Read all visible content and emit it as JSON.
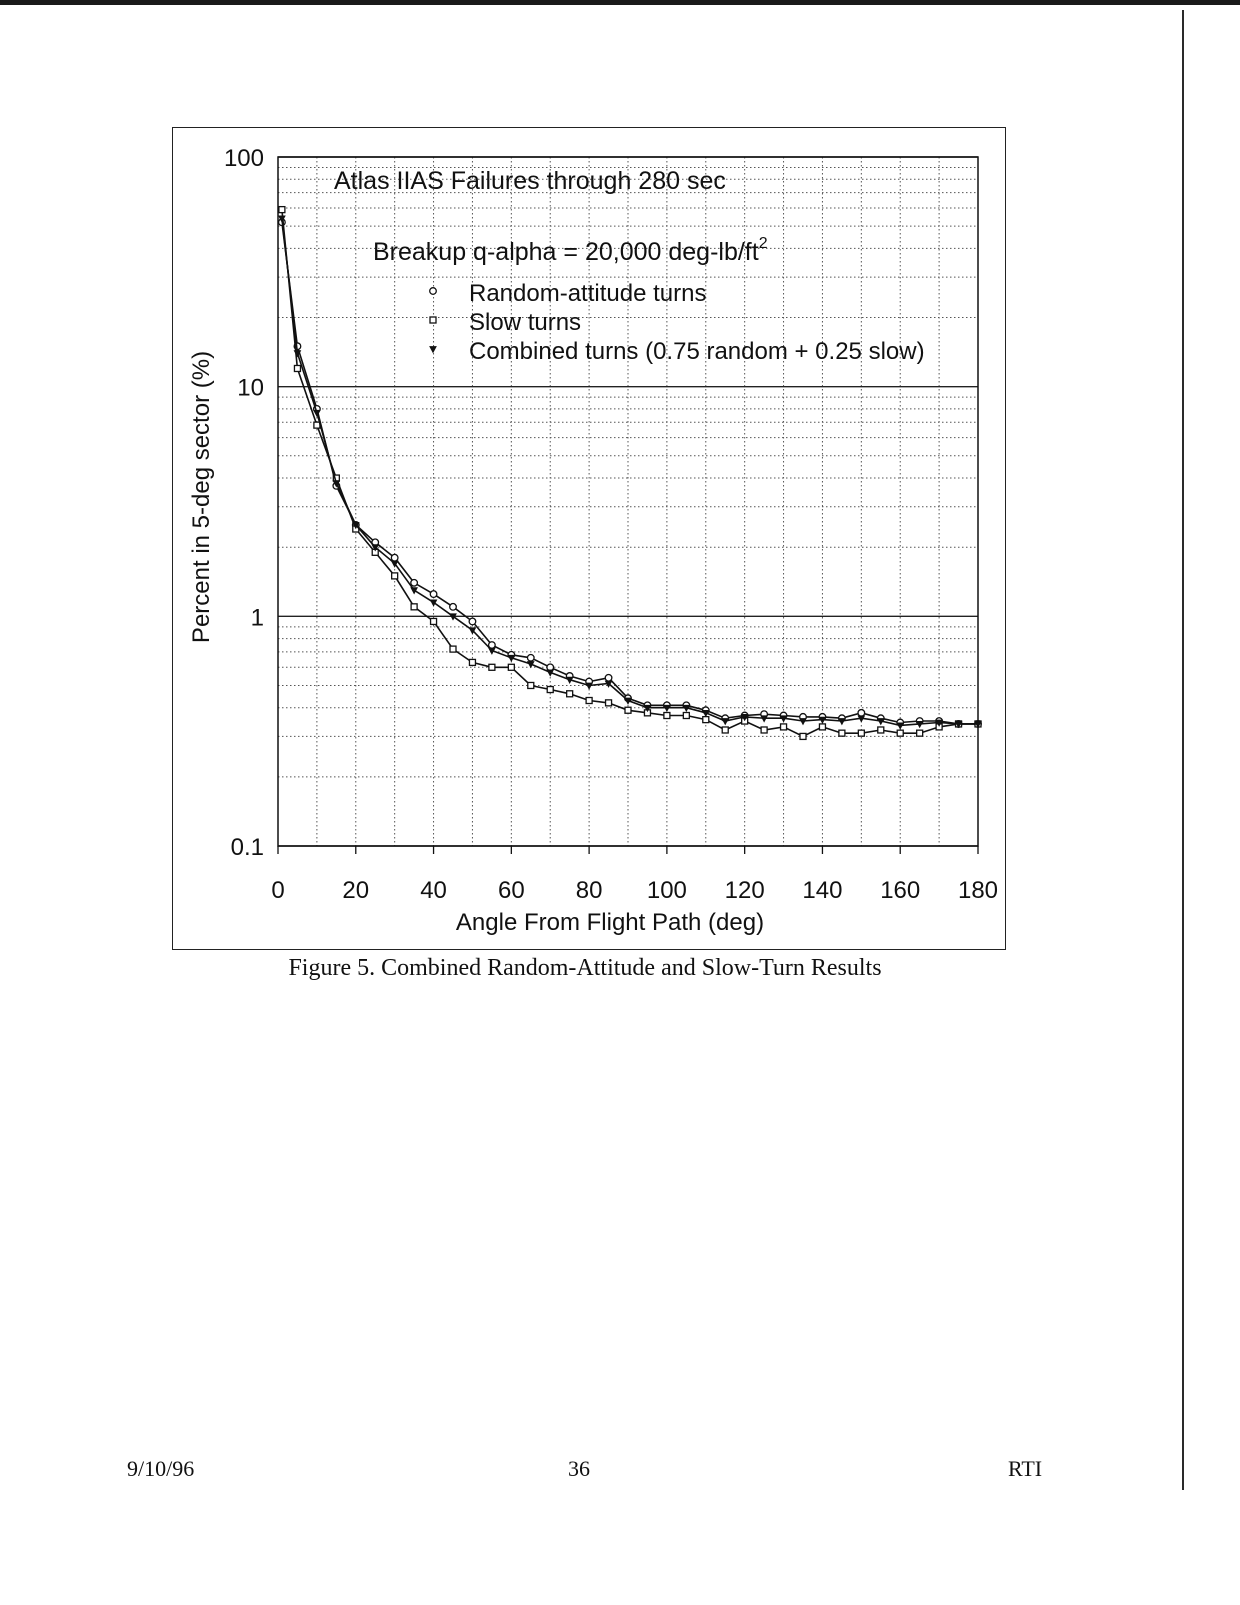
{
  "chart_data": {
    "type": "line",
    "title": "Atlas IIAS Failures through 280 sec",
    "subtitle": "Breakup q-alpha = 20,000 deg-lb/ft",
    "subtitle_superscript": "2",
    "xlabel": "Angle From Flight Path (deg)",
    "ylabel": "Percent in 5-deg sector (%)",
    "xlim": [
      0,
      180
    ],
    "ylim": [
      0.1,
      100
    ],
    "y_scale": "log",
    "x_ticks": [
      "0",
      "20",
      "40",
      "60",
      "80",
      "100",
      "120",
      "140",
      "160",
      "180"
    ],
    "y_ticks": [
      {
        "label": "0.1",
        "value": 0.1
      },
      {
        "label": "1",
        "value": 1
      },
      {
        "label": "10",
        "value": 10
      },
      {
        "label": "100",
        "value": 100
      }
    ],
    "grid": true,
    "legend_position": "top-center",
    "x": [
      1,
      5,
      10,
      15,
      20,
      25,
      30,
      35,
      40,
      45,
      50,
      55,
      60,
      65,
      70,
      75,
      80,
      85,
      90,
      95,
      100,
      105,
      110,
      115,
      120,
      125,
      130,
      135,
      140,
      145,
      150,
      155,
      160,
      165,
      170,
      175,
      180
    ],
    "series": [
      {
        "name": "Random-attitude turns",
        "marker": "circle",
        "values": [
          52,
          15,
          8.0,
          3.7,
          2.5,
          2.1,
          1.8,
          1.4,
          1.25,
          1.1,
          0.95,
          0.75,
          0.68,
          0.66,
          0.6,
          0.55,
          0.52,
          0.54,
          0.44,
          0.41,
          0.41,
          0.41,
          0.39,
          0.36,
          0.37,
          0.375,
          0.37,
          0.365,
          0.365,
          0.36,
          0.38,
          0.36,
          0.345,
          0.35,
          0.35,
          0.34,
          0.34
        ]
      },
      {
        "name": "Slow turns",
        "marker": "square",
        "values": [
          59,
          12,
          6.8,
          4.0,
          2.4,
          1.9,
          1.5,
          1.1,
          0.95,
          0.72,
          0.63,
          0.6,
          0.6,
          0.5,
          0.48,
          0.46,
          0.43,
          0.42,
          0.39,
          0.38,
          0.37,
          0.37,
          0.355,
          0.32,
          0.35,
          0.32,
          0.33,
          0.3,
          0.33,
          0.31,
          0.31,
          0.32,
          0.31,
          0.31,
          0.33,
          0.34,
          0.34
        ]
      },
      {
        "name": "Combined turns (0.75 random + 0.25 slow)",
        "marker": "triangle",
        "values": [
          54,
          14,
          7.7,
          3.8,
          2.5,
          2.0,
          1.7,
          1.3,
          1.15,
          1.0,
          0.87,
          0.71,
          0.66,
          0.62,
          0.57,
          0.53,
          0.5,
          0.51,
          0.43,
          0.4,
          0.4,
          0.4,
          0.38,
          0.35,
          0.365,
          0.36,
          0.36,
          0.35,
          0.355,
          0.35,
          0.36,
          0.35,
          0.335,
          0.34,
          0.345,
          0.34,
          0.34
        ]
      }
    ]
  },
  "caption": "Figure 5. Combined Random-Attitude and Slow-Turn Results",
  "footer": {
    "date": "9/10/96",
    "page": "36",
    "org": "RTI"
  }
}
